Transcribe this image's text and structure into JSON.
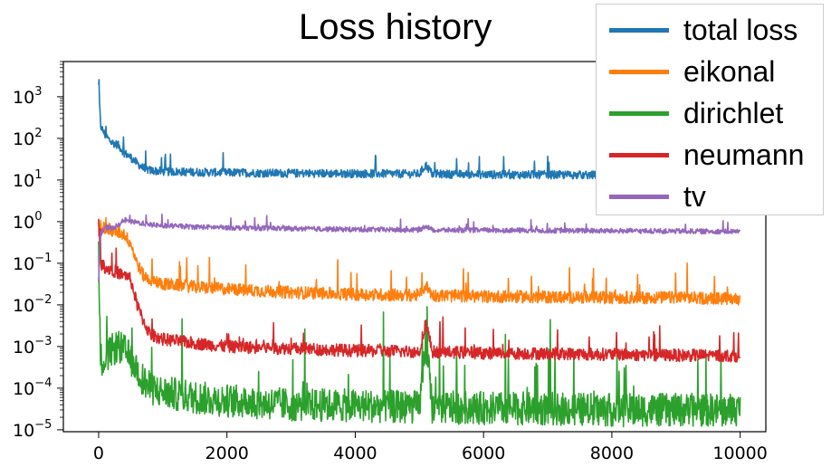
{
  "chart_data": {
    "type": "line",
    "title": "Loss history",
    "xlabel": "",
    "ylabel": "",
    "xlim": [
      -550,
      10400
    ],
    "ylim": [
      9e-06,
      7000
    ],
    "yscale": "log",
    "grid": false,
    "legend_position": "top-right",
    "x_ticks": [
      {
        "value": 0,
        "label": "0"
      },
      {
        "value": 2000,
        "label": "2000"
      },
      {
        "value": 4000,
        "label": "4000"
      },
      {
        "value": 6000,
        "label": "6000"
      },
      {
        "value": 8000,
        "label": "8000"
      },
      {
        "value": 10000,
        "label": "10000"
      }
    ],
    "y_ticks": [
      {
        "value": 1000,
        "base": "10",
        "exp": "3"
      },
      {
        "value": 100,
        "base": "10",
        "exp": "2"
      },
      {
        "value": 10,
        "base": "10",
        "exp": "1"
      },
      {
        "value": 1,
        "base": "10",
        "exp": "0"
      },
      {
        "value": 0.1,
        "base": "10",
        "exp": "−1"
      },
      {
        "value": 0.01,
        "base": "10",
        "exp": "−2"
      },
      {
        "value": 0.001,
        "base": "10",
        "exp": "−3"
      },
      {
        "value": 0.0001,
        "base": "10",
        "exp": "−4"
      },
      {
        "value": 1e-05,
        "base": "10",
        "exp": "−5"
      }
    ],
    "series": [
      {
        "name": "total loss",
        "color": "#1f77b4",
        "x": [
          0,
          30,
          100,
          200,
          300,
          400,
          500,
          600,
          700,
          800,
          1000,
          1500,
          2000,
          3000,
          4000,
          5000,
          5100,
          5200,
          6000,
          7000,
          8000,
          9000,
          10000
        ],
        "y": [
          1800,
          200,
          120,
          80,
          70,
          45,
          35,
          25,
          19,
          17,
          16,
          15.5,
          15,
          14.5,
          14.3,
          14,
          23,
          14,
          13.5,
          13.3,
          13,
          13,
          13
        ],
        "noise": 0.2
      },
      {
        "name": "eikonal",
        "color": "#ff7f0e",
        "x": [
          0,
          30,
          100,
          200,
          300,
          400,
          500,
          600,
          700,
          800,
          1000,
          1500,
          2000,
          3000,
          4000,
          5000,
          5100,
          5200,
          6000,
          7000,
          8000,
          9000,
          10000
        ],
        "y": [
          1.1,
          0.8,
          0.7,
          0.6,
          0.55,
          0.5,
          0.3,
          0.1,
          0.05,
          0.04,
          0.032,
          0.027,
          0.024,
          0.02,
          0.018,
          0.017,
          0.03,
          0.017,
          0.016,
          0.0155,
          0.015,
          0.015,
          0.014
        ],
        "noise": 0.3
      },
      {
        "name": "dirichlet",
        "color": "#2ca02c",
        "x": [
          0,
          30,
          100,
          200,
          300,
          400,
          500,
          600,
          700,
          800,
          1000,
          1500,
          2000,
          3000,
          4000,
          5000,
          5100,
          5200,
          6000,
          7000,
          8000,
          9000,
          10000
        ],
        "y": [
          0.15,
          0.0005,
          0.0005,
          0.0008,
          0.001,
          0.0008,
          0.0005,
          0.0003,
          0.00015,
          0.0001,
          8e-05,
          6e-05,
          5e-05,
          4e-05,
          3.8e-05,
          3.5e-05,
          0.0015,
          3.5e-05,
          3.3e-05,
          3.2e-05,
          3e-05,
          3e-05,
          3e-05
        ],
        "noise": 0.8
      },
      {
        "name": "neumann",
        "color": "#d62728",
        "x": [
          0,
          30,
          100,
          200,
          300,
          400,
          500,
          600,
          700,
          800,
          1000,
          1500,
          2000,
          3000,
          4000,
          5000,
          5100,
          5200,
          6000,
          7000,
          8000,
          9000,
          10000
        ],
        "y": [
          1.1,
          0.1,
          0.08,
          0.07,
          0.06,
          0.05,
          0.04,
          0.01,
          0.004,
          0.002,
          0.0015,
          0.0012,
          0.001,
          0.0009,
          0.0008,
          0.00075,
          0.004,
          0.00075,
          0.0007,
          0.00068,
          0.00065,
          0.00062,
          0.0006
        ],
        "noise": 0.3
      },
      {
        "name": "tv",
        "color": "#9467bd",
        "x": [
          0,
          30,
          100,
          200,
          300,
          400,
          500,
          600,
          700,
          800,
          1000,
          1500,
          2000,
          3000,
          4000,
          5000,
          5100,
          5200,
          6000,
          7000,
          8000,
          9000,
          10000
        ],
        "y": [
          0.04,
          0.5,
          0.7,
          0.7,
          0.8,
          1.1,
          1.0,
          0.95,
          0.9,
          0.85,
          0.8,
          0.75,
          0.72,
          0.68,
          0.65,
          0.63,
          0.8,
          0.63,
          0.62,
          0.61,
          0.6,
          0.59,
          0.58
        ],
        "noise": 0.12
      }
    ]
  }
}
